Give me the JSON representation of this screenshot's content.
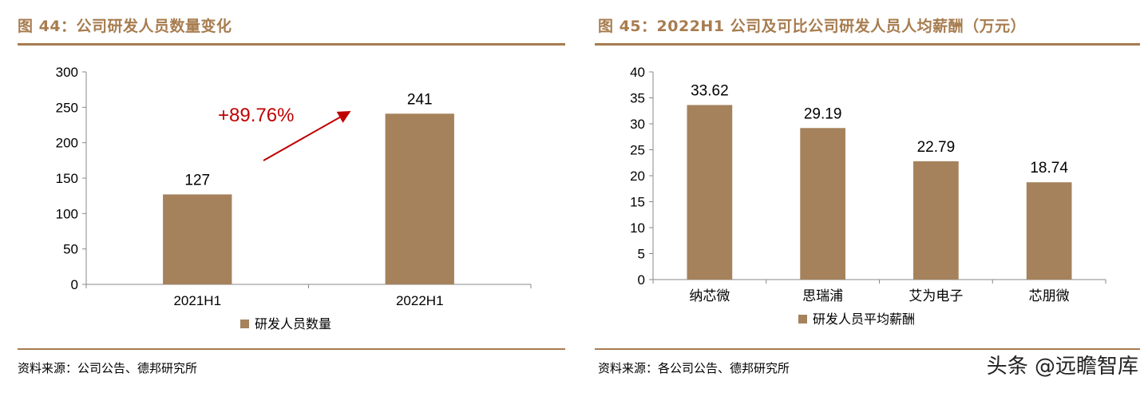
{
  "left": {
    "title": "图 44：公司研发人员数量变化",
    "source": "资料来源：公司公告、德邦研究所"
  },
  "right": {
    "title": "图 45：2022H1 公司及可比公司研发人员人均薪酬（万元）",
    "source": "资料来源：各公司公告、德邦研究所"
  },
  "watermark": "头条 @远瞻智库",
  "colors": {
    "bar": "#a5825c",
    "accent": "#a77c4f",
    "growth": "#c00000"
  },
  "chart_data": [
    {
      "type": "bar",
      "categories": [
        "2021H1",
        "2022H1"
      ],
      "series": [
        {
          "name": "研发人员数量",
          "values": [
            127,
            241
          ]
        }
      ],
      "data_labels": [
        "127",
        "241"
      ],
      "ylim": [
        0,
        300
      ],
      "yticks": [
        0,
        50,
        100,
        150,
        200,
        250,
        300
      ],
      "annotation": "+89.76%",
      "legend": "bottom"
    },
    {
      "type": "bar",
      "categories": [
        "纳芯微",
        "思瑞浦",
        "艾为电子",
        "芯朋微"
      ],
      "series": [
        {
          "name": "研发人员平均薪酬",
          "values": [
            33.62,
            29.19,
            22.79,
            18.74
          ]
        }
      ],
      "data_labels": [
        "33.62",
        "29.19",
        "22.79",
        "18.74"
      ],
      "ylim": [
        0,
        40
      ],
      "yticks": [
        0,
        5,
        10,
        15,
        20,
        25,
        30,
        35,
        40
      ],
      "legend": "bottom"
    }
  ]
}
